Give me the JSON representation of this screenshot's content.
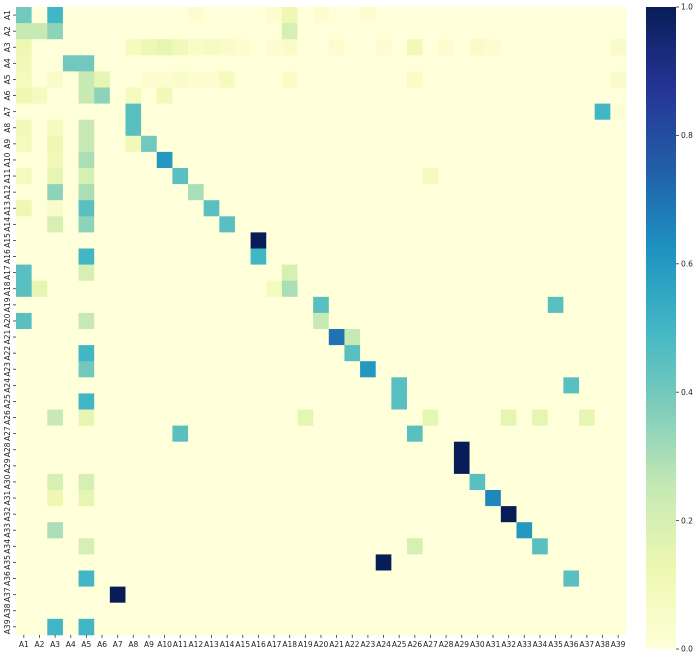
{
  "chart_data": {
    "type": "heatmap",
    "title": "",
    "xlabel": "",
    "ylabel": "",
    "labels": [
      "A1",
      "A2",
      "A3",
      "A4",
      "A5",
      "A6",
      "A7",
      "A8",
      "A9",
      "A10",
      "A11",
      "A12",
      "A13",
      "A14",
      "A15",
      "A16",
      "A17",
      "A18",
      "A19",
      "A20",
      "A21",
      "A22",
      "A23",
      "A24",
      "A25",
      "A26",
      "A27",
      "A28",
      "A29",
      "A30",
      "A31",
      "A32",
      "A33",
      "A34",
      "A35",
      "A36",
      "A37",
      "A38",
      "A39"
    ],
    "colorscale": "YlGnBu",
    "value_range": [
      0.0,
      1.0
    ],
    "colorbar_ticks": [
      "0.0",
      "0.2",
      "0.4",
      "0.6",
      "0.8",
      "1.0"
    ],
    "default_value": 0.0,
    "cells": [
      {
        "row": "A1",
        "col": "A1",
        "value": 0.4
      },
      {
        "row": "A1",
        "col": "A3",
        "value": 0.5
      },
      {
        "row": "A1",
        "col": "A12",
        "value": 0.03
      },
      {
        "row": "A1",
        "col": "A17",
        "value": 0.03
      },
      {
        "row": "A1",
        "col": "A18",
        "value": 0.12
      },
      {
        "row": "A1",
        "col": "A20",
        "value": 0.03
      },
      {
        "row": "A1",
        "col": "A23",
        "value": 0.03
      },
      {
        "row": "A2",
        "col": "A1",
        "value": 0.25
      },
      {
        "row": "A2",
        "col": "A2",
        "value": 0.25
      },
      {
        "row": "A2",
        "col": "A3",
        "value": 0.35
      },
      {
        "row": "A2",
        "col": "A18",
        "value": 0.2
      },
      {
        "row": "A3",
        "col": "A1",
        "value": 0.12
      },
      {
        "row": "A3",
        "col": "A8",
        "value": 0.08
      },
      {
        "row": "A3",
        "col": "A9",
        "value": 0.12
      },
      {
        "row": "A3",
        "col": "A10",
        "value": 0.15
      },
      {
        "row": "A3",
        "col": "A11",
        "value": 0.1
      },
      {
        "row": "A3",
        "col": "A12",
        "value": 0.05
      },
      {
        "row": "A3",
        "col": "A13",
        "value": 0.07
      },
      {
        "row": "A3",
        "col": "A14",
        "value": 0.05
      },
      {
        "row": "A3",
        "col": "A15",
        "value": 0.03
      },
      {
        "row": "A3",
        "col": "A17",
        "value": 0.03
      },
      {
        "row": "A3",
        "col": "A18",
        "value": 0.05
      },
      {
        "row": "A3",
        "col": "A21",
        "value": 0.03
      },
      {
        "row": "A3",
        "col": "A24",
        "value": 0.03
      },
      {
        "row": "A3",
        "col": "A26",
        "value": 0.1
      },
      {
        "row": "A3",
        "col": "A28",
        "value": 0.03
      },
      {
        "row": "A3",
        "col": "A30",
        "value": 0.05
      },
      {
        "row": "A3",
        "col": "A31",
        "value": 0.03
      },
      {
        "row": "A3",
        "col": "A39",
        "value": 0.05
      },
      {
        "row": "A4",
        "col": "A1",
        "value": 0.1
      },
      {
        "row": "A4",
        "col": "A4",
        "value": 0.4
      },
      {
        "row": "A4",
        "col": "A5",
        "value": 0.4
      },
      {
        "row": "A5",
        "col": "A1",
        "value": 0.08
      },
      {
        "row": "A5",
        "col": "A3",
        "value": 0.05
      },
      {
        "row": "A5",
        "col": "A5",
        "value": 0.25
      },
      {
        "row": "A5",
        "col": "A6",
        "value": 0.15
      },
      {
        "row": "A5",
        "col": "A9",
        "value": 0.03
      },
      {
        "row": "A5",
        "col": "A10",
        "value": 0.03
      },
      {
        "row": "A5",
        "col": "A11",
        "value": 0.05
      },
      {
        "row": "A5",
        "col": "A12",
        "value": 0.03
      },
      {
        "row": "A5",
        "col": "A13",
        "value": 0.03
      },
      {
        "row": "A5",
        "col": "A14",
        "value": 0.08
      },
      {
        "row": "A5",
        "col": "A18",
        "value": 0.05
      },
      {
        "row": "A5",
        "col": "A26",
        "value": 0.05
      },
      {
        "row": "A5",
        "col": "A39",
        "value": 0.05
      },
      {
        "row": "A6",
        "col": "A1",
        "value": 0.12
      },
      {
        "row": "A6",
        "col": "A2",
        "value": 0.08
      },
      {
        "row": "A6",
        "col": "A5",
        "value": 0.25
      },
      {
        "row": "A6",
        "col": "A6",
        "value": 0.35
      },
      {
        "row": "A6",
        "col": "A8",
        "value": 0.08
      },
      {
        "row": "A6",
        "col": "A10",
        "value": 0.1
      },
      {
        "row": "A7",
        "col": "A8",
        "value": 0.45
      },
      {
        "row": "A7",
        "col": "A38",
        "value": 0.5
      },
      {
        "row": "A7",
        "col": "A39",
        "value": 0.02
      },
      {
        "row": "A8",
        "col": "A1",
        "value": 0.1
      },
      {
        "row": "A8",
        "col": "A3",
        "value": 0.08
      },
      {
        "row": "A8",
        "col": "A5",
        "value": 0.25
      },
      {
        "row": "A8",
        "col": "A8",
        "value": 0.45
      },
      {
        "row": "A9",
        "col": "A1",
        "value": 0.08
      },
      {
        "row": "A9",
        "col": "A3",
        "value": 0.12
      },
      {
        "row": "A9",
        "col": "A5",
        "value": 0.25
      },
      {
        "row": "A9",
        "col": "A8",
        "value": 0.1
      },
      {
        "row": "A9",
        "col": "A9",
        "value": 0.4
      },
      {
        "row": "A10",
        "col": "A3",
        "value": 0.1
      },
      {
        "row": "A10",
        "col": "A5",
        "value": 0.3
      },
      {
        "row": "A10",
        "col": "A10",
        "value": 0.6
      },
      {
        "row": "A11",
        "col": "A1",
        "value": 0.08
      },
      {
        "row": "A11",
        "col": "A3",
        "value": 0.15
      },
      {
        "row": "A11",
        "col": "A5",
        "value": 0.2
      },
      {
        "row": "A11",
        "col": "A11",
        "value": 0.45
      },
      {
        "row": "A11",
        "col": "A27",
        "value": 0.08
      },
      {
        "row": "A12",
        "col": "A3",
        "value": 0.35
      },
      {
        "row": "A12",
        "col": "A5",
        "value": 0.3
      },
      {
        "row": "A12",
        "col": "A12",
        "value": 0.3
      },
      {
        "row": "A13",
        "col": "A1",
        "value": 0.12
      },
      {
        "row": "A13",
        "col": "A3",
        "value": 0.05
      },
      {
        "row": "A13",
        "col": "A5",
        "value": 0.45
      },
      {
        "row": "A13",
        "col": "A13",
        "value": 0.45
      },
      {
        "row": "A14",
        "col": "A3",
        "value": 0.2
      },
      {
        "row": "A14",
        "col": "A5",
        "value": 0.35
      },
      {
        "row": "A14",
        "col": "A14",
        "value": 0.45
      },
      {
        "row": "A15",
        "col": "A16",
        "value": 1.0
      },
      {
        "row": "A16",
        "col": "A5",
        "value": 0.5
      },
      {
        "row": "A16",
        "col": "A16",
        "value": 0.5
      },
      {
        "row": "A17",
        "col": "A1",
        "value": 0.45
      },
      {
        "row": "A17",
        "col": "A5",
        "value": 0.2
      },
      {
        "row": "A17",
        "col": "A18",
        "value": 0.2
      },
      {
        "row": "A18",
        "col": "A1",
        "value": 0.45
      },
      {
        "row": "A18",
        "col": "A2",
        "value": 0.15
      },
      {
        "row": "A18",
        "col": "A17",
        "value": 0.08
      },
      {
        "row": "A18",
        "col": "A18",
        "value": 0.3
      },
      {
        "row": "A19",
        "col": "A20",
        "value": 0.45
      },
      {
        "row": "A19",
        "col": "A35",
        "value": 0.45
      },
      {
        "row": "A20",
        "col": "A1",
        "value": 0.45
      },
      {
        "row": "A20",
        "col": "A5",
        "value": 0.25
      },
      {
        "row": "A20",
        "col": "A20",
        "value": 0.25
      },
      {
        "row": "A21",
        "col": "A21",
        "value": 0.7
      },
      {
        "row": "A21",
        "col": "A22",
        "value": 0.25
      },
      {
        "row": "A22",
        "col": "A5",
        "value": 0.5
      },
      {
        "row": "A22",
        "col": "A22",
        "value": 0.45
      },
      {
        "row": "A23",
        "col": "A5",
        "value": 0.4
      },
      {
        "row": "A23",
        "col": "A23",
        "value": 0.6
      },
      {
        "row": "A24",
        "col": "A25",
        "value": 0.45
      },
      {
        "row": "A24",
        "col": "A36",
        "value": 0.45
      },
      {
        "row": "A25",
        "col": "A5",
        "value": 0.5
      },
      {
        "row": "A25",
        "col": "A25",
        "value": 0.45
      },
      {
        "row": "A26",
        "col": "A3",
        "value": 0.25
      },
      {
        "row": "A26",
        "col": "A5",
        "value": 0.15
      },
      {
        "row": "A26",
        "col": "A19",
        "value": 0.15
      },
      {
        "row": "A26",
        "col": "A27",
        "value": 0.15
      },
      {
        "row": "A26",
        "col": "A32",
        "value": 0.15
      },
      {
        "row": "A26",
        "col": "A34",
        "value": 0.15
      },
      {
        "row": "A26",
        "col": "A37",
        "value": 0.15
      },
      {
        "row": "A27",
        "col": "A11",
        "value": 0.45
      },
      {
        "row": "A27",
        "col": "A26",
        "value": 0.45
      },
      {
        "row": "A28",
        "col": "A29",
        "value": 1.0
      },
      {
        "row": "A29",
        "col": "A29",
        "value": 1.0
      },
      {
        "row": "A30",
        "col": "A3",
        "value": 0.2
      },
      {
        "row": "A30",
        "col": "A5",
        "value": 0.2
      },
      {
        "row": "A30",
        "col": "A30",
        "value": 0.45
      },
      {
        "row": "A31",
        "col": "A3",
        "value": 0.12
      },
      {
        "row": "A31",
        "col": "A5",
        "value": 0.15
      },
      {
        "row": "A31",
        "col": "A31",
        "value": 0.65
      },
      {
        "row": "A32",
        "col": "A32",
        "value": 1.0
      },
      {
        "row": "A33",
        "col": "A3",
        "value": 0.3
      },
      {
        "row": "A33",
        "col": "A33",
        "value": 0.6
      },
      {
        "row": "A34",
        "col": "A5",
        "value": 0.2
      },
      {
        "row": "A34",
        "col": "A26",
        "value": 0.2
      },
      {
        "row": "A34",
        "col": "A34",
        "value": 0.45
      },
      {
        "row": "A35",
        "col": "A24",
        "value": 1.0
      },
      {
        "row": "A36",
        "col": "A5",
        "value": 0.5
      },
      {
        "row": "A36",
        "col": "A36",
        "value": 0.45
      },
      {
        "row": "A37",
        "col": "A7",
        "value": 1.0
      },
      {
        "row": "A39",
        "col": "A3",
        "value": 0.5
      },
      {
        "row": "A39",
        "col": "A5",
        "value": 0.5
      }
    ]
  }
}
